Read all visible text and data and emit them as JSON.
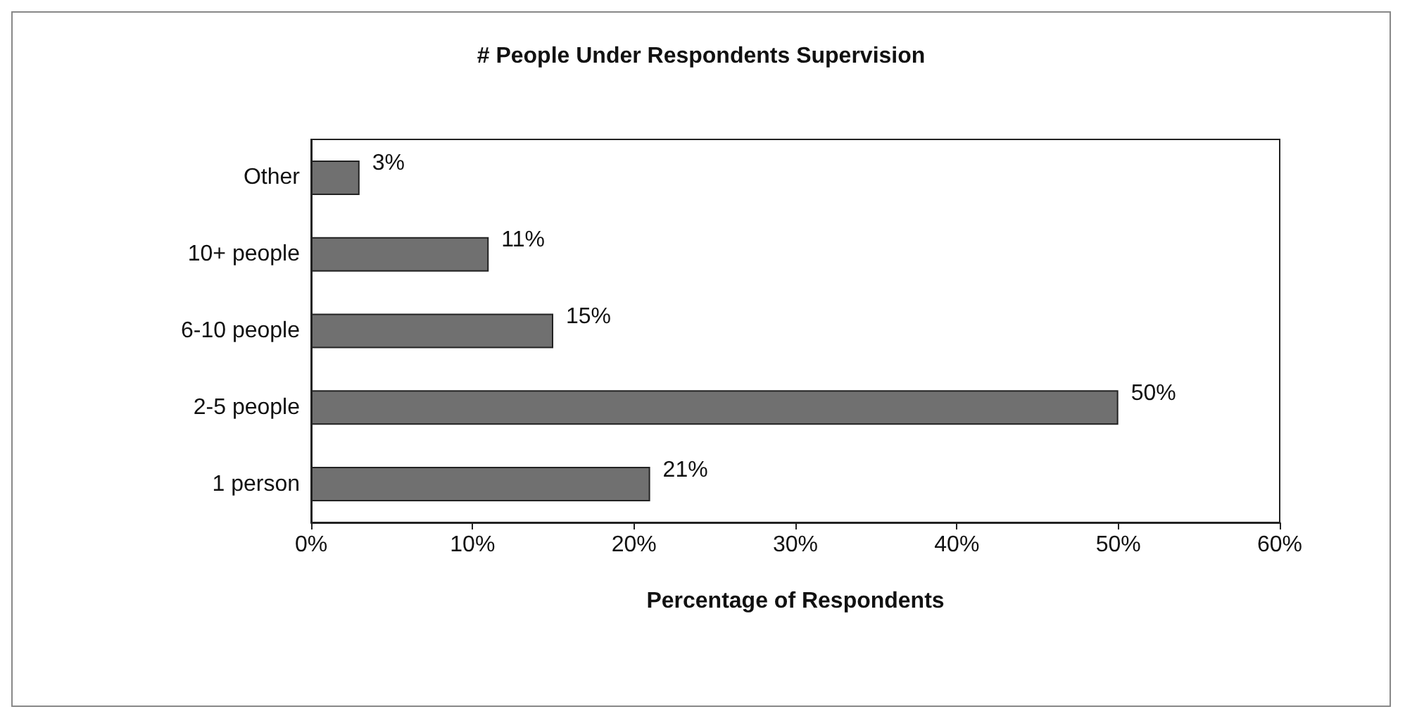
{
  "chart_data": {
    "type": "bar",
    "orientation": "horizontal",
    "title": "# People Under Respondents Supervision",
    "xlabel": "Percentage of Respondents",
    "categories": [
      "Other",
      "10+ people",
      "6-10 people",
      "2-5 people",
      "1 person"
    ],
    "values": [
      3,
      11,
      15,
      50,
      21
    ],
    "value_labels": [
      "3%",
      "11%",
      "15%",
      "50%",
      "21%"
    ],
    "color": "#707070",
    "xlim": [
      0,
      60
    ],
    "xticks": [
      {
        "value": 0,
        "label": "0%"
      },
      {
        "value": 10,
        "label": "10%"
      },
      {
        "value": 20,
        "label": "20%"
      },
      {
        "value": 30,
        "label": "30%"
      },
      {
        "value": 40,
        "label": "40%"
      },
      {
        "value": 50,
        "label": "50%"
      },
      {
        "value": 60,
        "label": "60%"
      }
    ],
    "grid": false
  }
}
